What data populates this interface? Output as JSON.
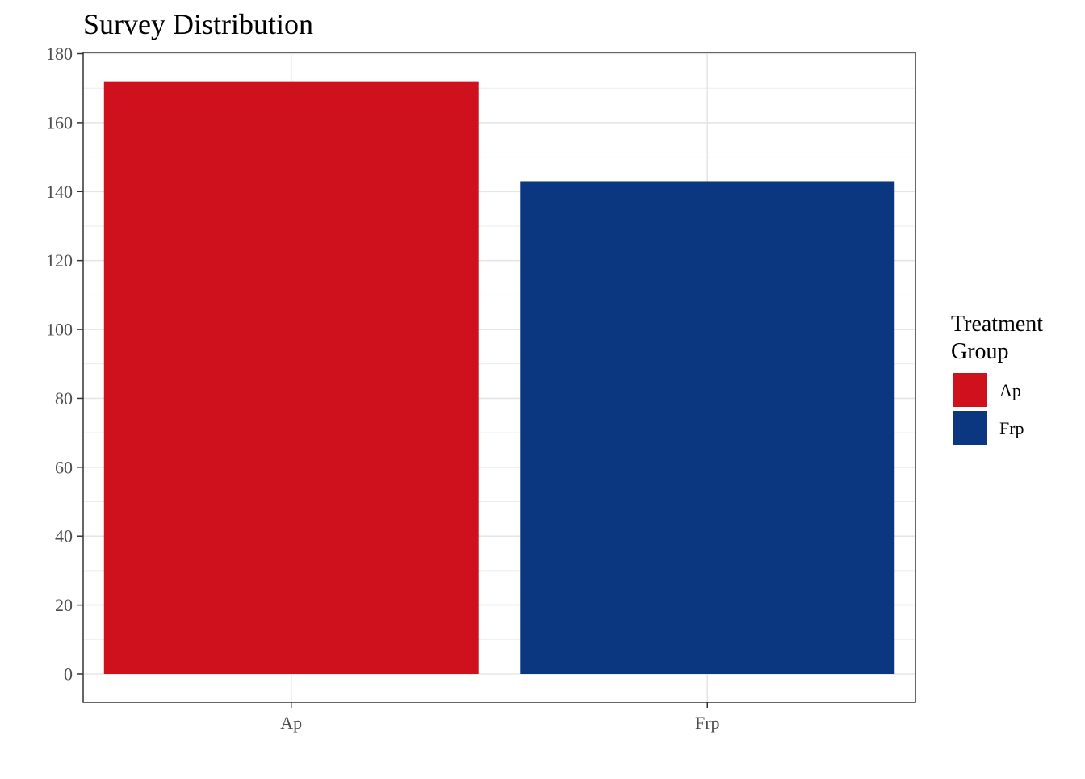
{
  "chart_data": {
    "type": "bar",
    "title": "Survey Distribution",
    "xlabel": "",
    "ylabel": "",
    "categories": [
      "Ap",
      "Frp"
    ],
    "values": [
      172,
      143
    ],
    "colors": [
      "#cf111d",
      "#0b3680"
    ],
    "ylim": [
      -8,
      180
    ],
    "yticks": [
      0,
      20,
      40,
      60,
      80,
      100,
      120,
      140,
      160,
      180
    ],
    "y_tick_labels": [
      "0",
      "20",
      "40",
      "60",
      "80",
      "100",
      "120",
      "140",
      "160",
      "180"
    ],
    "grid": true,
    "legend": {
      "title_lines": [
        "Treatment",
        "Group"
      ],
      "entries": [
        "Ap",
        "Frp"
      ],
      "position": "right"
    }
  }
}
